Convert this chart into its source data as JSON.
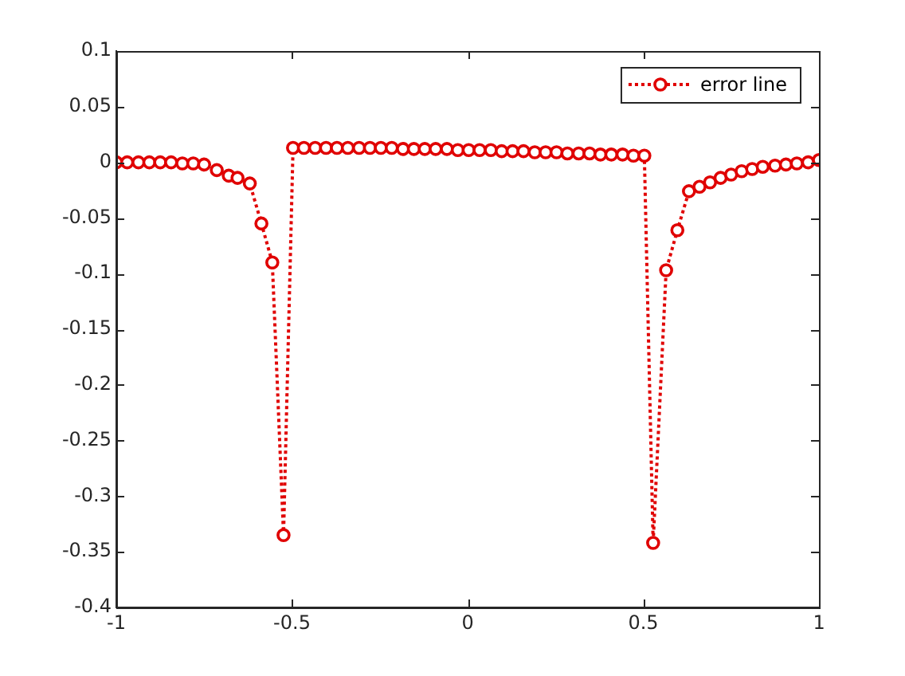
{
  "chart_data": {
    "type": "line",
    "xlim": [
      -1,
      1
    ],
    "xticks": [
      -1,
      -0.5,
      0,
      0.5,
      1
    ],
    "ylim": [
      -0.4,
      0.1
    ],
    "yticks": [
      -0.4,
      -0.35,
      -0.3,
      -0.25,
      -0.2,
      -0.15,
      -0.1,
      -0.05,
      0,
      0.05,
      0.1
    ],
    "grid": false,
    "legend": "top right",
    "marker": "circle",
    "line_style": "dotted",
    "series": [
      {
        "name": "error line",
        "color": "#e00000",
        "x": [
          -1,
          -0.969,
          -0.937,
          -0.906,
          -0.875,
          -0.844,
          -0.812,
          -0.781,
          -0.75,
          -0.714,
          -0.68,
          -0.655,
          -0.62,
          -0.587,
          -0.556,
          -0.524,
          -0.497,
          -0.466,
          -0.434,
          -0.403,
          -0.372,
          -0.341,
          -0.309,
          -0.278,
          -0.247,
          -0.216,
          -0.184,
          -0.153,
          -0.122,
          -0.091,
          -0.059,
          -0.028,
          0.003,
          0.034,
          0.066,
          0.097,
          0.128,
          0.159,
          0.191,
          0.222,
          0.253,
          0.284,
          0.316,
          0.347,
          0.378,
          0.409,
          0.441,
          0.472,
          0.503,
          0.528,
          0.565,
          0.597,
          0.63,
          0.66,
          0.69,
          0.72,
          0.75,
          0.78,
          0.81,
          0.84,
          0.875,
          0.906,
          0.937,
          0.969,
          1
        ],
        "values": [
          0,
          0,
          0,
          0,
          0,
          0,
          -0.001,
          -0.001,
          -0.002,
          -0.007,
          -0.012,
          -0.014,
          -0.019,
          -0.055,
          -0.09,
          -0.335,
          0.013,
          0.013,
          0.013,
          0.013,
          0.013,
          0.013,
          0.013,
          0.013,
          0.013,
          0.013,
          0.012,
          0.012,
          0.012,
          0.012,
          0.012,
          0.011,
          0.011,
          0.011,
          0.011,
          0.01,
          0.01,
          0.01,
          0.009,
          0.009,
          0.009,
          0.008,
          0.008,
          0.008,
          0.007,
          0.007,
          0.007,
          0.006,
          0.006,
          -0.342,
          -0.097,
          -0.061,
          -0.026,
          -0.022,
          -0.018,
          -0.014,
          -0.011,
          -0.008,
          -0.006,
          -0.004,
          -0.003,
          -0.002,
          -0.001,
          0,
          0.002
        ]
      }
    ]
  }
}
